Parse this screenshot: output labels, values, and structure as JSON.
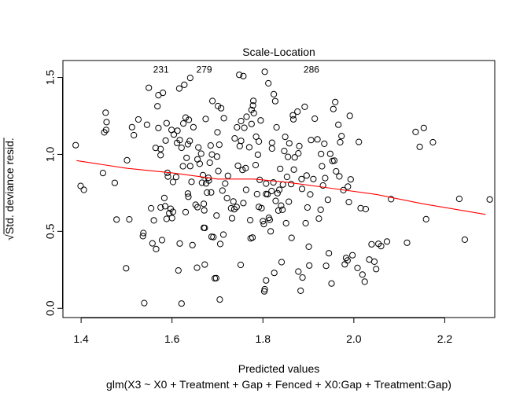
{
  "chart_data": {
    "type": "scatter",
    "title": "Scale-Location",
    "xlabel": "Predicted values",
    "sublabel": "glm(X3 ~ X0 + Treatment + Gap + Fenced + X0:Gap + Treatment:Gap)",
    "ylabel_radicand": "Std. deviance resid.",
    "ylabel_root": "√",
    "xlim": [
      1.36,
      2.31
    ],
    "ylim": [
      -0.06,
      1.61
    ],
    "x_ticks": [
      1.4,
      1.6,
      1.8,
      2.0,
      2.2
    ],
    "x_tick_labels": [
      "1.4",
      "1.6",
      "1.8",
      "2.0",
      "2.2"
    ],
    "y_ticks": [
      0.0,
      0.5,
      1.0,
      1.5
    ],
    "y_tick_labels": [
      "0.0",
      "0.5",
      "1.0",
      "1.5"
    ],
    "grid": false,
    "colors": {
      "points": "#000000",
      "smooth": "#ff0000",
      "frame": "#000000"
    },
    "smooth": {
      "x": [
        1.39,
        1.5,
        1.6,
        1.7,
        1.78,
        1.85,
        1.95,
        2.05,
        2.15,
        2.29
      ],
      "y": [
        0.96,
        0.91,
        0.88,
        0.84,
        0.84,
        0.82,
        0.78,
        0.74,
        0.68,
        0.61
      ]
    },
    "annotations": [
      {
        "label": "231",
        "x": 1.548,
        "y": 1.55
      },
      {
        "label": "279",
        "x": 1.643,
        "y": 1.55
      },
      {
        "label": "286",
        "x": 1.879,
        "y": 1.55
      }
    ],
    "points": [
      [
        1.388,
        1.06
      ],
      [
        1.399,
        0.795
      ],
      [
        1.406,
        0.77
      ],
      [
        1.448,
        0.879
      ],
      [
        1.455,
        1.159
      ],
      [
        1.451,
        1.143
      ],
      [
        1.456,
        1.21
      ],
      [
        1.454,
        1.271
      ],
      [
        1.474,
        0.815
      ],
      [
        1.478,
        0.577
      ],
      [
        1.499,
        0.26
      ],
      [
        1.501,
        0.962
      ],
      [
        1.506,
        0.578
      ],
      [
        1.512,
        1.177
      ],
      [
        1.516,
        1.125
      ],
      [
        1.526,
        1.227
      ],
      [
        1.536,
        0.469
      ],
      [
        1.537,
        0.489
      ],
      [
        1.539,
        0.034
      ],
      [
        1.545,
        1.193
      ],
      [
        1.549,
        1.433
      ],
      [
        1.554,
        0.65
      ],
      [
        1.557,
        0.422
      ],
      [
        1.56,
        0.571
      ],
      [
        1.564,
        1.042
      ],
      [
        1.565,
        0.385
      ],
      [
        1.568,
        1.313
      ],
      [
        1.57,
        1.385
      ],
      [
        1.57,
        1.172
      ],
      [
        1.575,
        0.655
      ],
      [
        1.575,
        1.035
      ],
      [
        1.575,
        0.995
      ],
      [
        1.578,
        0.443
      ],
      [
        1.58,
        1.4
      ],
      [
        1.583,
        0.717
      ],
      [
        1.585,
        0.663
      ],
      [
        1.586,
        1.09
      ],
      [
        1.588,
        0.581
      ],
      [
        1.588,
        1.203
      ],
      [
        1.59,
        0.88
      ],
      [
        1.591,
        0.856
      ],
      [
        1.594,
        0.618
      ],
      [
        1.597,
        0.647
      ],
      [
        1.599,
        1.159
      ],
      [
        1.6,
        0.586
      ],
      [
        1.602,
        0.821
      ],
      [
        1.602,
        0.627
      ],
      [
        1.604,
        1.129
      ],
      [
        1.609,
        0.853
      ],
      [
        1.611,
        1.075
      ],
      [
        1.612,
        1.154
      ],
      [
        1.614,
        0.246
      ],
      [
        1.616,
        1.428
      ],
      [
        1.617,
        0.421
      ],
      [
        1.617,
        1.093
      ],
      [
        1.621,
        0.031
      ],
      [
        1.621,
        1.043
      ],
      [
        1.624,
        0.923
      ],
      [
        1.625,
        1.201
      ],
      [
        1.627,
        1.452
      ],
      [
        1.63,
        0.625
      ],
      [
        1.63,
        1.239
      ],
      [
        1.632,
        0.978
      ],
      [
        1.635,
        1.066
      ],
      [
        1.635,
        0.746
      ],
      [
        1.636,
        0.725
      ],
      [
        1.637,
        1.225
      ],
      [
        1.639,
        1.087
      ],
      [
        1.64,
        1.497
      ],
      [
        1.64,
        0.924
      ],
      [
        1.643,
        0.822
      ],
      [
        1.645,
        0.411
      ],
      [
        1.647,
        1.177
      ],
      [
        1.652,
        0.673
      ],
      [
        1.655,
        0.264
      ],
      [
        1.656,
        0.968
      ],
      [
        1.656,
        0.657
      ],
      [
        1.658,
        1.045
      ],
      [
        1.661,
        0.939
      ],
      [
        1.664,
        1.005
      ],
      [
        1.666,
        0.816
      ],
      [
        1.668,
        0.865
      ],
      [
        1.67,
        0.523
      ],
      [
        1.67,
        0.679
      ],
      [
        1.671,
        0.636
      ],
      [
        1.672,
        0.284
      ],
      [
        1.672,
        0.522
      ],
      [
        1.674,
        1.23
      ],
      [
        1.675,
        0.812
      ],
      [
        1.677,
        0.752
      ],
      [
        1.68,
        0.848
      ],
      [
        1.681,
        0.83
      ],
      [
        1.683,
        0.946
      ],
      [
        1.685,
        1.058
      ],
      [
        1.686,
        0.753
      ],
      [
        1.687,
        0.465
      ],
      [
        1.688,
        0.999
      ],
      [
        1.689,
        1.347
      ],
      [
        1.691,
        0.463
      ],
      [
        1.694,
        0.195
      ],
      [
        1.697,
        0.196
      ],
      [
        1.698,
        0.603
      ],
      [
        1.699,
        0.986
      ],
      [
        1.7,
        1.143
      ],
      [
        1.701,
        1.314
      ],
      [
        1.702,
        0.892
      ],
      [
        1.704,
        1.063
      ],
      [
        1.705,
        0.057
      ],
      [
        1.706,
        0.418
      ],
      [
        1.708,
        1.3
      ],
      [
        1.711,
        0.765
      ],
      [
        1.713,
        0.479
      ],
      [
        1.714,
        1.235
      ],
      [
        1.717,
        0.811
      ],
      [
        1.721,
        0.716
      ],
      [
        1.723,
        0.861
      ],
      [
        1.73,
        0.65
      ],
      [
        1.732,
        0.585
      ],
      [
        1.735,
        0.694
      ],
      [
        1.737,
        0.644
      ],
      [
        1.738,
        1.104
      ],
      [
        1.742,
        0.658
      ],
      [
        1.743,
        1.176
      ],
      [
        1.745,
        0.926
      ],
      [
        1.748,
        1.517
      ],
      [
        1.749,
        1.054
      ],
      [
        1.751,
        0.282
      ],
      [
        1.752,
        1.217
      ],
      [
        1.752,
        1.088
      ],
      [
        1.755,
        0.899
      ],
      [
        1.757,
        1.509
      ],
      [
        1.757,
        0.684
      ],
      [
        1.759,
        1.173
      ],
      [
        1.762,
        0.911
      ],
      [
        1.763,
        0.77
      ],
      [
        1.764,
        1.245
      ],
      [
        1.77,
        1.046
      ],
      [
        1.772,
        0.573
      ],
      [
        1.773,
        0.455
      ],
      [
        1.775,
        1.289
      ],
      [
        1.775,
        1.198
      ],
      [
        1.777,
        0.46
      ],
      [
        1.778,
        1.318
      ],
      [
        1.779,
        1.348
      ],
      [
        1.78,
        1.268
      ],
      [
        1.784,
        0.931
      ],
      [
        1.785,
        1.115
      ],
      [
        1.787,
        0.742
      ],
      [
        1.789,
        0.998
      ],
      [
        1.791,
        0.659
      ],
      [
        1.791,
        1.084
      ],
      [
        1.793,
        0.835
      ],
      [
        1.795,
        1.221
      ],
      [
        1.797,
        0.651
      ],
      [
        1.8,
        0.566
      ],
      [
        1.802,
        0.547
      ],
      [
        1.803,
        0.11
      ],
      [
        1.804,
        1.537
      ],
      [
        1.804,
        0.124
      ],
      [
        1.807,
        0.181
      ],
      [
        1.807,
        0.81
      ],
      [
        1.807,
        0.743
      ],
      [
        1.81,
        0.741
      ],
      [
        1.812,
        1.462
      ],
      [
        1.813,
        0.588
      ],
      [
        1.815,
        0.575
      ],
      [
        1.817,
        0.5
      ],
      [
        1.819,
        0.762
      ],
      [
        1.82,
        1.038
      ],
      [
        1.82,
        1.076
      ],
      [
        1.823,
        0.818
      ],
      [
        1.824,
        1.391
      ],
      [
        1.825,
        0.23
      ],
      [
        1.827,
        1.346
      ],
      [
        1.828,
        0.698
      ],
      [
        1.83,
        1.176
      ],
      [
        1.832,
        0.748
      ],
      [
        1.834,
        0.635
      ],
      [
        1.836,
        0.77
      ],
      [
        1.838,
        0.906
      ],
      [
        1.84,
        0.667
      ],
      [
        1.841,
        0.3
      ],
      [
        1.843,
        0.64
      ],
      [
        1.844,
        0.804
      ],
      [
        1.847,
        1.022
      ],
      [
        1.849,
        1.114
      ],
      [
        1.851,
        0.553
      ],
      [
        1.853,
        0.854
      ],
      [
        1.855,
        0.984
      ],
      [
        1.857,
        0.693
      ],
      [
        1.858,
        1.072
      ],
      [
        1.862,
        0.807
      ],
      [
        1.863,
        0.458
      ],
      [
        1.866,
        1.254
      ],
      [
        1.867,
        1.228
      ],
      [
        1.868,
        0.901
      ],
      [
        1.87,
        0.981
      ],
      [
        1.876,
        1.278
      ],
      [
        1.878,
        0.239
      ],
      [
        1.878,
        1.007
      ],
      [
        1.88,
        1.054
      ],
      [
        1.883,
        0.114
      ],
      [
        1.885,
        0.84
      ],
      [
        1.886,
        0.776
      ],
      [
        1.887,
        0.2
      ],
      [
        1.892,
        1.309
      ],
      [
        1.894,
        0.553
      ],
      [
        1.896,
        0.863
      ],
      [
        1.898,
        0.655
      ],
      [
        1.901,
        0.4
      ],
      [
        1.902,
        0.278
      ],
      [
        1.904,
        0.74
      ],
      [
        1.906,
        1.093
      ],
      [
        1.911,
        0.84
      ],
      [
        1.914,
        1.232
      ],
      [
        1.92,
        1.098
      ],
      [
        1.923,
        0.583
      ],
      [
        1.927,
        0.64
      ],
      [
        1.928,
        1.003
      ],
      [
        1.93,
        0.923
      ],
      [
        1.932,
        0.798
      ],
      [
        1.935,
        1.069
      ],
      [
        1.937,
        0.846
      ],
      [
        1.939,
        0.276
      ],
      [
        1.943,
        0.705
      ],
      [
        1.945,
        0.358
      ],
      [
        1.948,
        1.004
      ],
      [
        1.951,
        0.161
      ],
      [
        1.953,
        0.957
      ],
      [
        1.955,
        1.295
      ],
      [
        1.957,
        0.96
      ],
      [
        1.959,
        1.34
      ],
      [
        1.961,
        0.89
      ],
      [
        1.966,
        1.193
      ],
      [
        1.968,
        0.857
      ],
      [
        1.97,
        1.079
      ],
      [
        1.973,
        1.119
      ],
      [
        1.977,
        0.768
      ],
      [
        1.98,
        0.286
      ],
      [
        1.983,
        0.327
      ],
      [
        1.986,
        0.311
      ],
      [
        1.987,
        0.791
      ],
      [
        1.989,
        0.69
      ],
      [
        1.991,
        1.251
      ],
      [
        1.993,
        0.838
      ],
      [
        1.997,
        0.345
      ],
      [
        2.008,
        0.262
      ],
      [
        2.011,
        1.081
      ],
      [
        2.015,
        0.651
      ],
      [
        2.019,
        0.219
      ],
      [
        2.024,
        0.173
      ],
      [
        2.026,
        0.645
      ],
      [
        2.034,
        0.317
      ],
      [
        2.039,
        0.416
      ],
      [
        2.045,
        0.303
      ],
      [
        2.049,
        0.255
      ],
      [
        2.054,
        0.419
      ],
      [
        2.06,
        0.404
      ],
      [
        2.073,
        0.434
      ],
      [
        2.082,
        0.709
      ],
      [
        2.117,
        0.426
      ],
      [
        2.136,
        1.146
      ],
      [
        2.145,
        1.049
      ],
      [
        2.154,
        1.172
      ],
      [
        2.159,
        0.579
      ],
      [
        2.174,
        1.079
      ],
      [
        2.232,
        0.711
      ],
      [
        2.244,
        0.446
      ],
      [
        2.299,
        0.707
      ]
    ]
  }
}
